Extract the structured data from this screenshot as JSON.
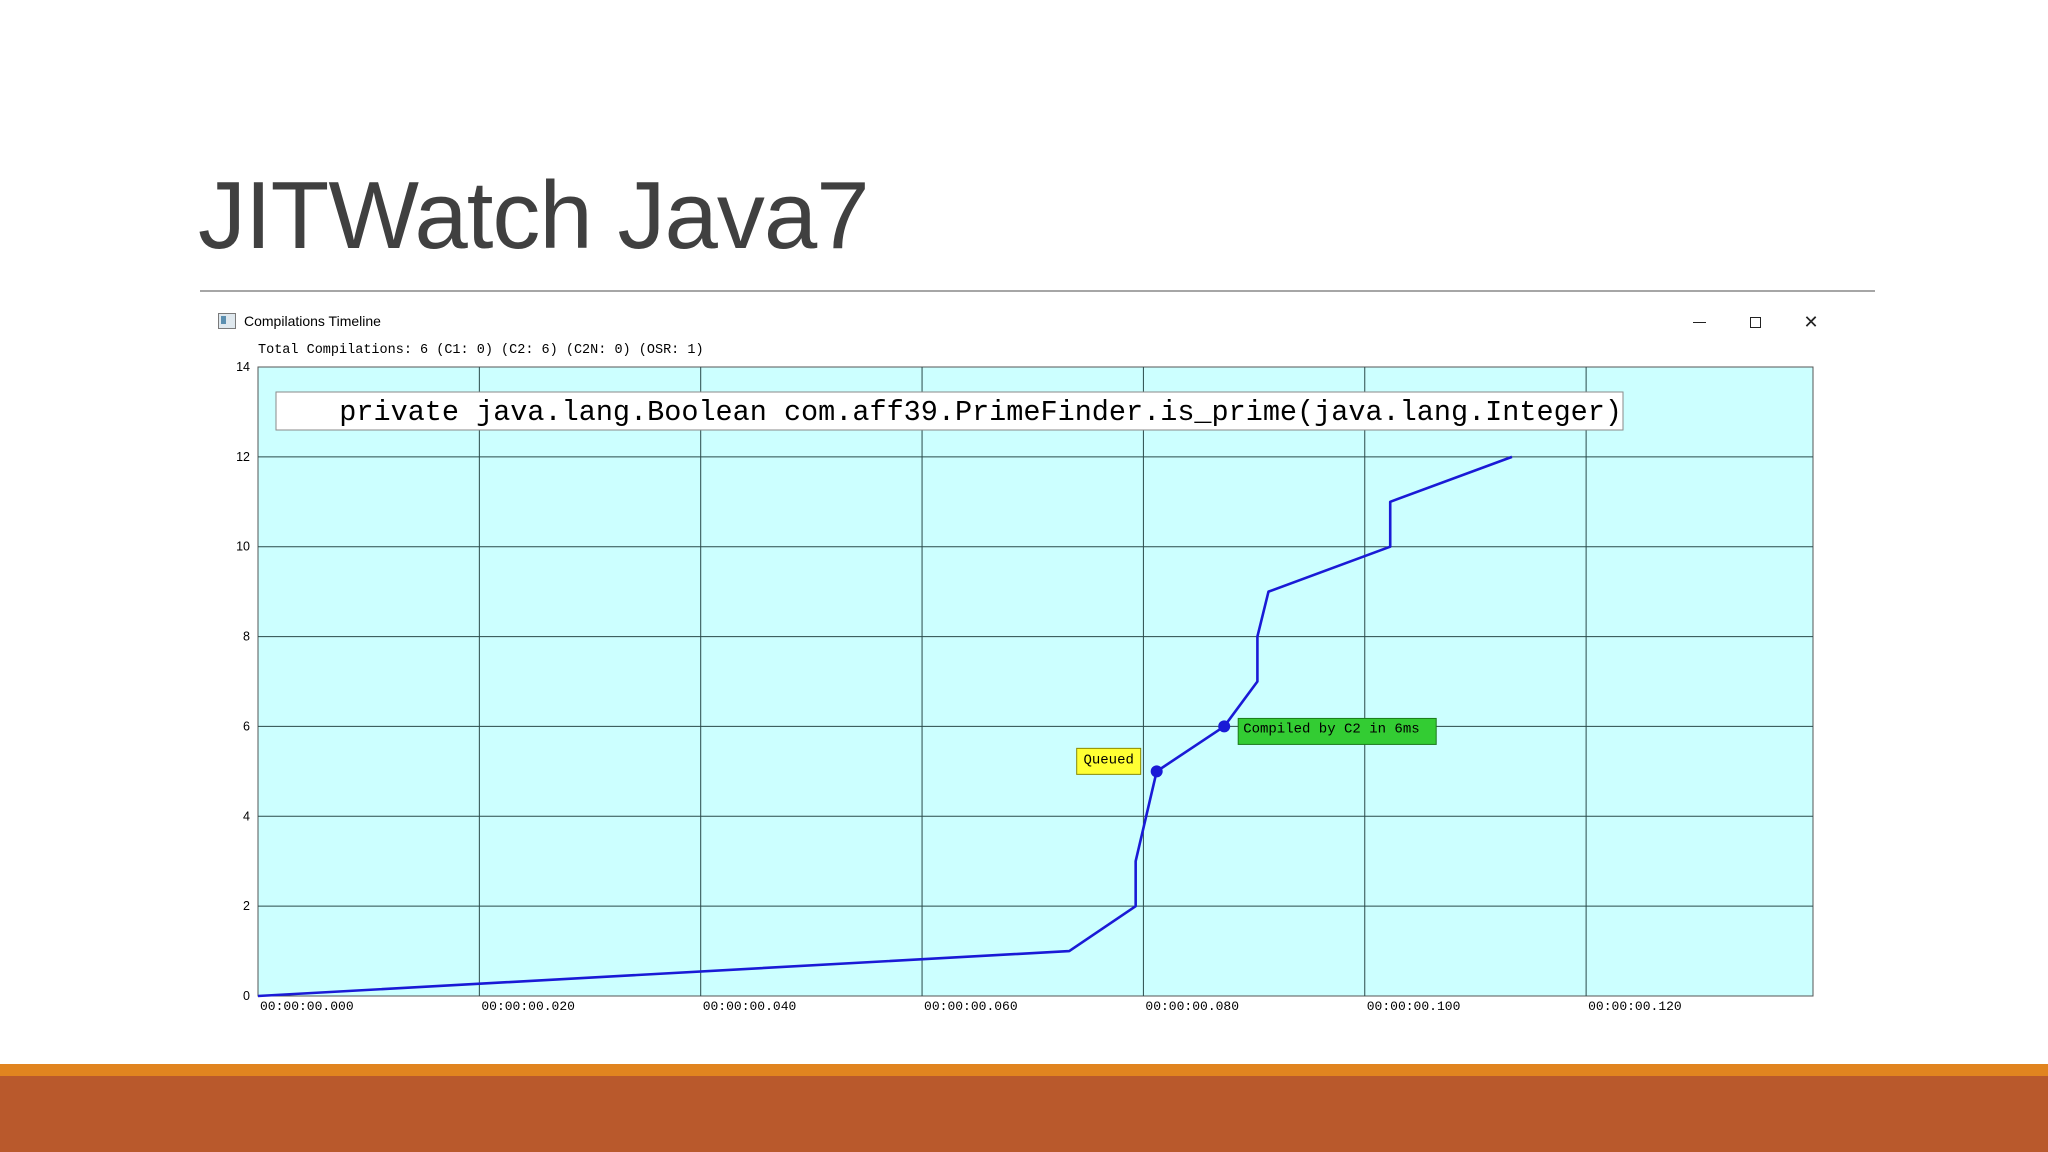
{
  "slide": {
    "title": "JITWatch Java7"
  },
  "window": {
    "title": "Compilations Timeline",
    "icon": "app-window-icon",
    "controls": [
      "minimize-icon",
      "maximize-icon",
      "close-icon"
    ]
  },
  "summary": "Total Compilations: 6 (C1: 0) (C2: 6) (C2N: 0) (OSR: 1)",
  "colors": {
    "plot_background": "#ccffff",
    "line": "#1a1ad6",
    "queued_label": "#ffff33",
    "compiled_label": "#33cc33",
    "footer_top": "#e1841f",
    "footer": "#b9592c"
  },
  "chart_data": {
    "type": "line",
    "title": "private java.lang.Boolean com.aff39.PrimeFinder.is_prime(java.lang.Integer)",
    "xlabel": "",
    "ylabel": "",
    "x_unit": "seconds",
    "xlim": [
      0,
      0.1405
    ],
    "ylim": [
      0,
      14
    ],
    "grid": true,
    "x_ticks": [
      0,
      0.02,
      0.04,
      0.06,
      0.08,
      0.1,
      0.12
    ],
    "x_tick_labels": [
      "00:00:00.000",
      "00:00:00.020",
      "00:00:00.040",
      "00:00:00.060",
      "00:00:00.080",
      "00:00:00.100",
      "00:00:00.120"
    ],
    "y_ticks": [
      0,
      2,
      4,
      6,
      8,
      10,
      12,
      14
    ],
    "y_tick_labels": [
      "0",
      "2",
      "4",
      "6",
      "8",
      "10",
      "12",
      "14"
    ],
    "series": [
      {
        "name": "",
        "x": [
          0,
          0.0733,
          0.0793,
          0.0793,
          0.0812,
          0.0873,
          0.0903,
          0.0903,
          0.0913,
          0.1023,
          0.1023,
          0.1133
        ],
        "y": [
          0,
          1,
          2,
          3,
          5,
          6,
          7,
          8,
          9,
          10,
          11,
          12
        ]
      }
    ],
    "markers": [
      {
        "x": 0.0812,
        "y": 5,
        "label": "Queued"
      },
      {
        "x": 0.0873,
        "y": 6,
        "label": "Compiled by C2 in 6ms"
      }
    ]
  }
}
